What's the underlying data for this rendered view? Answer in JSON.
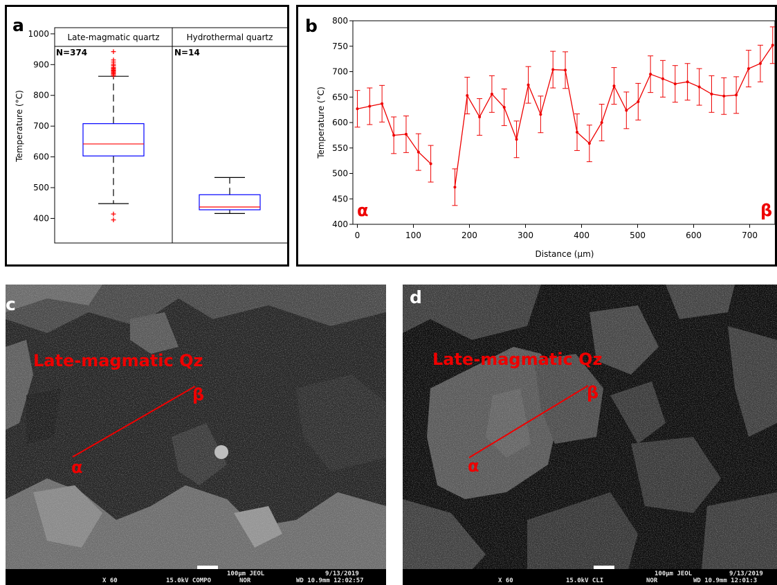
{
  "panel_a": {
    "letter": "a",
    "chart_data": {
      "type": "box",
      "categories": [
        "Late-magmatic quartz",
        "Hydrothermal quartz"
      ],
      "counts": [
        "N=374",
        "N=14"
      ],
      "ylabel": "Temperature (°C)",
      "ylim": [
        320,
        1020
      ],
      "yticks": [
        400,
        500,
        600,
        700,
        800,
        900,
        1000
      ],
      "boxes": [
        {
          "q1": 603,
          "median": 642,
          "q3": 708,
          "whisker_low": 448,
          "whisker_high": 862,
          "outliers": [
            396,
            416,
            866,
            870,
            874,
            877,
            880,
            883,
            886,
            889,
            893,
            898,
            903,
            910,
            916,
            944
          ]
        },
        {
          "q1": 428,
          "median": 437,
          "q3": 477,
          "whisker_low": 416,
          "whisker_high": 533,
          "outliers": []
        }
      ],
      "colors": {
        "box": "#0000ff",
        "median": "#ff0000",
        "outlier": "#ff0000",
        "whisker": "#000000"
      }
    }
  },
  "panel_b": {
    "letter": "b",
    "start_marker": "α",
    "end_marker": "β",
    "chart_data": {
      "type": "line",
      "xlabel": "Distance (µm)",
      "ylabel": "Temperature (°C)",
      "xlim": [
        -8,
        745
      ],
      "ylim": [
        400,
        800
      ],
      "xticks": [
        0,
        100,
        200,
        300,
        400,
        500,
        600,
        700
      ],
      "yticks": [
        400,
        450,
        500,
        550,
        600,
        650,
        700,
        750,
        800
      ],
      "color": "#ee0000",
      "segments": [
        {
          "x": [
            0,
            22,
            44,
            65,
            87,
            109,
            131
          ],
          "y": [
            627,
            632,
            637,
            575,
            577,
            542,
            519
          ]
        },
        {
          "x": [
            174,
            196,
            218,
            240,
            262,
            284,
            305,
            327,
            349,
            371,
            392,
            414,
            436,
            458,
            480,
            501,
            523,
            545,
            567,
            589,
            610,
            632,
            654,
            676,
            698,
            719,
            741
          ],
          "y": [
            473,
            653,
            611,
            656,
            630,
            567,
            674,
            616,
            704,
            703,
            581,
            559,
            600,
            672,
            624,
            641,
            695,
            686,
            676,
            680,
            670,
            656,
            652,
            654,
            706,
            716,
            752
          ]
        }
      ],
      "error": 36
    }
  },
  "panel_c": {
    "letter": "c",
    "label": "Late-magmatic Qz",
    "alpha": "α",
    "beta": "β",
    "info": {
      "mag": "X 60",
      "kv": "15.0kV COMPO",
      "mode": "NOR",
      "scale": "100µm JEOL",
      "wd": "WD 10.9mm 12:02:57",
      "date": "9/13/2019"
    }
  },
  "panel_d": {
    "letter": "d",
    "label": "Late-magmatic Qz",
    "alpha": "α",
    "beta": "β",
    "info": {
      "mag": "X 60",
      "kv": "15.0kV CLI",
      "mode": "NOR",
      "scale": "100µm JEOL",
      "wd": "WD 10.9mm 12:01:3",
      "date": "9/13/2019"
    }
  }
}
